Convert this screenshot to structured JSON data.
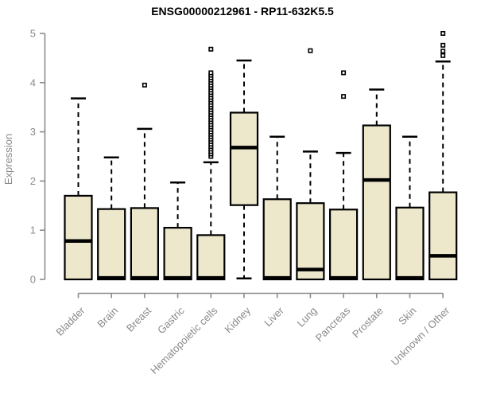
{
  "chart_data": {
    "type": "boxplot",
    "title": "ENSG00000212961 - RP11-632K5.5",
    "xlabel": "",
    "ylabel": "Expression",
    "ylim": [
      0,
      5
    ],
    "yticks": [
      "0",
      "1",
      "2",
      "3",
      "4",
      "5"
    ],
    "grid": false,
    "legend": "none",
    "categories": [
      "Bladder",
      "Brain",
      "Breast",
      "Gastric",
      "Hematopoietic cells",
      "Kidney",
      "Liver",
      "Lung",
      "Pancreas",
      "Prostate",
      "Skin",
      "Unknown / Other"
    ],
    "boxes": [
      {
        "label": "Bladder",
        "q1": 0,
        "median": 0.78,
        "q3": 1.7,
        "whisker_low": 0,
        "whisker_high": 3.68,
        "outliers": []
      },
      {
        "label": "Brain",
        "q1": 0,
        "median": 0.03,
        "q3": 1.43,
        "whisker_low": 0,
        "whisker_high": 2.48,
        "outliers": []
      },
      {
        "label": "Breast",
        "q1": 0,
        "median": 0.03,
        "q3": 1.45,
        "whisker_low": 0,
        "whisker_high": 3.06,
        "outliers": [
          3.95
        ]
      },
      {
        "label": "Gastric",
        "q1": 0,
        "median": 0.03,
        "q3": 1.05,
        "whisker_low": 0,
        "whisker_high": 1.97,
        "outliers": []
      },
      {
        "label": "Hematopoietic cells",
        "q1": 0,
        "median": 0.03,
        "q3": 0.9,
        "whisker_low": 0,
        "whisker_high": 2.38,
        "outliers": [
          2.5,
          2.55,
          2.6,
          2.65,
          2.7,
          2.75,
          2.8,
          2.85,
          2.9,
          2.95,
          3.0,
          3.05,
          3.1,
          3.15,
          3.2,
          3.25,
          3.3,
          3.35,
          3.4,
          3.45,
          3.5,
          3.55,
          3.6,
          3.65,
          3.7,
          3.75,
          3.8,
          3.85,
          3.9,
          3.95,
          4.0,
          4.05,
          4.1,
          4.15,
          4.2,
          4.68
        ]
      },
      {
        "label": "Kidney",
        "q1": 1.51,
        "median": 2.68,
        "q3": 3.39,
        "whisker_low": 0.02,
        "whisker_high": 4.45,
        "outliers": []
      },
      {
        "label": "Liver",
        "q1": 0,
        "median": 0.03,
        "q3": 1.63,
        "whisker_low": 0,
        "whisker_high": 2.9,
        "outliers": []
      },
      {
        "label": "Lung",
        "q1": 0,
        "median": 0.2,
        "q3": 1.55,
        "whisker_low": 0,
        "whisker_high": 2.6,
        "outliers": [
          4.65
        ]
      },
      {
        "label": "Pancreas",
        "q1": 0,
        "median": 0.03,
        "q3": 1.42,
        "whisker_low": 0,
        "whisker_high": 2.57,
        "outliers": [
          4.2,
          3.72
        ]
      },
      {
        "label": "Prostate",
        "q1": 0,
        "median": 2.02,
        "q3": 3.13,
        "whisker_low": 0,
        "whisker_high": 3.86,
        "outliers": []
      },
      {
        "label": "Skin",
        "q1": 0,
        "median": 0.03,
        "q3": 1.46,
        "whisker_low": 0,
        "whisker_high": 2.9,
        "outliers": []
      },
      {
        "label": "Unknown / Other",
        "q1": 0,
        "median": 0.48,
        "q3": 1.77,
        "whisker_low": 0,
        "whisker_high": 4.43,
        "outliers": [
          5.0,
          4.76,
          4.64,
          4.55
        ]
      }
    ],
    "colors": {
      "box_fill": "#EDE8CC",
      "box_stroke": "#000000",
      "median": "#000000",
      "whisker": "#000000",
      "axis": "#8C8C8C",
      "tick_text": "#8A8A8A",
      "title_text": "#000000",
      "background": "#FFFFFF"
    }
  }
}
